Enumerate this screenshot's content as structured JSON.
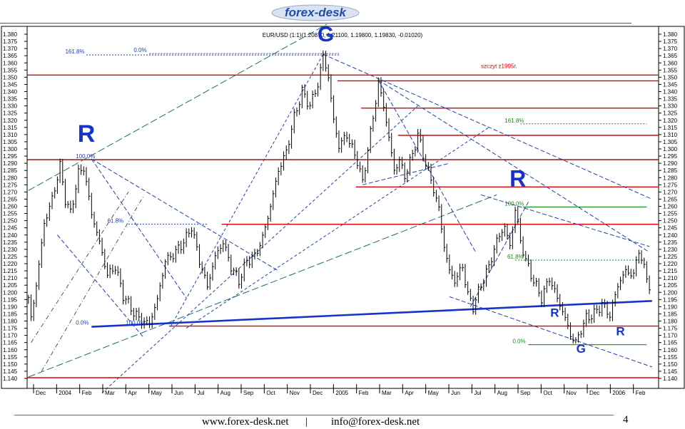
{
  "logo": {
    "text": "forex-desk",
    "color": "#1f4fa6"
  },
  "footer": {
    "site": "www.forex-desk.net",
    "separator": "|",
    "email": "info@forex-desk.net",
    "page_number": "4"
  },
  "chart_data": {
    "type": "line",
    "title": "EUR/USD (1:1)(1.20870, 1.21100, 1.19800, 1.19830, -0.01020)",
    "ylim": [
      1.138,
      1.384
    ],
    "y_ticks": [
      "1.380",
      "1.375",
      "1.370",
      "1.365",
      "1.360",
      "1.355",
      "1.350",
      "1.345",
      "1.340",
      "1.335",
      "1.330",
      "1.325",
      "1.320",
      "1.315",
      "1.310",
      "1.305",
      "1.300",
      "1.295",
      "1.290",
      "1.285",
      "1.280",
      "1.275",
      "1.270",
      "1.265",
      "1.260",
      "1.255",
      "1.250",
      "1.245",
      "1.240",
      "1.235",
      "1.230",
      "1.225",
      "1.220",
      "1.215",
      "1.210",
      "1.205",
      "1.200",
      "1.195",
      "1.190",
      "1.185",
      "1.180",
      "1.175",
      "1.170",
      "1.165",
      "1.160",
      "1.155",
      "1.150",
      "1.145",
      "1.140"
    ],
    "x_months": [
      "Dec",
      "2004",
      "Feb",
      "Mar",
      "Apr",
      "May",
      "Jun",
      "Jul",
      "Aug",
      "Sep",
      "Oct",
      "Nov",
      "Dec",
      "2005",
      "Feb",
      "Mar",
      "Apr",
      "May",
      "Jun",
      "Jul",
      "Aug",
      "Sep",
      "Oct",
      "Nov",
      "Dec",
      "2006",
      "Feb"
    ],
    "price_anchors": [
      [
        0,
        1.195
      ],
      [
        1,
        1.182
      ],
      [
        3,
        1.205
      ],
      [
        6,
        1.248
      ],
      [
        9,
        1.265
      ],
      [
        12,
        1.288
      ],
      [
        14,
        1.265
      ],
      [
        16,
        1.255
      ],
      [
        19,
        1.283
      ],
      [
        21,
        1.287
      ],
      [
        24,
        1.255
      ],
      [
        27,
        1.235
      ],
      [
        30,
        1.212
      ],
      [
        33,
        1.218
      ],
      [
        36,
        1.198
      ],
      [
        40,
        1.186
      ],
      [
        43,
        1.18
      ],
      [
        46,
        1.178
      ],
      [
        49,
        1.195
      ],
      [
        52,
        1.222
      ],
      [
        56,
        1.228
      ],
      [
        60,
        1.238
      ],
      [
        62,
        1.246
      ],
      [
        65,
        1.222
      ],
      [
        68,
        1.204
      ],
      [
        71,
        1.225
      ],
      [
        74,
        1.235
      ],
      [
        77,
        1.218
      ],
      [
        80,
        1.208
      ],
      [
        83,
        1.222
      ],
      [
        86,
        1.225
      ],
      [
        89,
        1.238
      ],
      [
        92,
        1.26
      ],
      [
        95,
        1.285
      ],
      [
        98,
        1.298
      ],
      [
        101,
        1.322
      ],
      [
        104,
        1.34
      ],
      [
        107,
        1.33
      ],
      [
        110,
        1.345
      ],
      [
        112,
        1.365
      ],
      [
        114,
        1.35
      ],
      [
        116,
        1.32
      ],
      [
        118,
        1.302
      ],
      [
        121,
        1.31
      ],
      [
        123,
        1.3
      ],
      [
        125,
        1.292
      ],
      [
        127,
        1.276
      ],
      [
        129,
        1.3
      ],
      [
        131,
        1.322
      ],
      [
        133,
        1.346
      ],
      [
        135,
        1.33
      ],
      [
        137,
        1.308
      ],
      [
        139,
        1.285
      ],
      [
        141,
        1.292
      ],
      [
        143,
        1.281
      ],
      [
        146,
        1.296
      ],
      [
        148,
        1.31
      ],
      [
        150,
        1.296
      ],
      [
        152,
        1.284
      ],
      [
        154,
        1.272
      ],
      [
        156,
        1.258
      ],
      [
        158,
        1.232
      ],
      [
        160,
        1.215
      ],
      [
        162,
        1.208
      ],
      [
        165,
        1.218
      ],
      [
        167,
        1.198
      ],
      [
        169,
        1.19
      ],
      [
        172,
        1.205
      ],
      [
        175,
        1.218
      ],
      [
        178,
        1.236
      ],
      [
        181,
        1.246
      ],
      [
        183,
        1.232
      ],
      [
        185,
        1.258
      ],
      [
        187,
        1.236
      ],
      [
        189,
        1.222
      ],
      [
        192,
        1.208
      ],
      [
        195,
        1.196
      ],
      [
        198,
        1.21
      ],
      [
        201,
        1.196
      ],
      [
        204,
        1.182
      ],
      [
        206,
        1.17
      ],
      [
        208,
        1.165
      ],
      [
        210,
        1.174
      ],
      [
        212,
        1.182
      ],
      [
        215,
        1.185
      ],
      [
        218,
        1.192
      ],
      [
        221,
        1.184
      ],
      [
        224,
        1.205
      ],
      [
        227,
        1.215
      ],
      [
        230,
        1.212
      ],
      [
        232,
        1.23
      ],
      [
        234,
        1.216
      ],
      [
        236,
        1.205
      ]
    ],
    "levels": [
      {
        "price": 1.3515,
        "color": "#dd0000",
        "x0": 0
      },
      {
        "price": 1.3475,
        "color": "#dd0000",
        "x0": 118
      },
      {
        "price": 1.3285,
        "color": "#dd0000",
        "x0": 127
      },
      {
        "price": 1.3095,
        "color": "#dd0000",
        "x0": 141
      },
      {
        "price": 1.2925,
        "color": "#8b0000",
        "x0": 0
      },
      {
        "price": 1.2735,
        "color": "#dd0000",
        "x0": 125
      },
      {
        "price": 1.2475,
        "color": "#dd0000",
        "x0": 74
      },
      {
        "price": 1.1765,
        "color": "#dd0000",
        "x0": 54
      },
      {
        "price": 1.1405,
        "color": "#dd0000",
        "x0": 0
      }
    ],
    "annotations": [
      {
        "text": "161.8%",
        "x": 14,
        "price": 1.3655,
        "color": "#1f3fb0"
      },
      {
        "text": "0.0%",
        "x": 40,
        "price": 1.3665,
        "color": "#1f3fb0"
      },
      {
        "text": "szczyt z1995r.",
        "x": 172,
        "price": 1.3555,
        "color": "#dd0000"
      },
      {
        "text": "161.8%",
        "x": 181,
        "price": 1.3175,
        "color": "#1a8a1a"
      },
      {
        "text": "100.0%",
        "x": 18,
        "price": 1.2925,
        "color": "#1f3fb0"
      },
      {
        "text": "100.0%",
        "x": 181,
        "price": 1.2595,
        "color": "#1a8a1a"
      },
      {
        "text": "61.8%",
        "x": 30,
        "price": 1.2475,
        "color": "#1f3fb0"
      },
      {
        "text": "61.8%",
        "x": 182,
        "price": 1.2225,
        "color": "#1a8a1a"
      },
      {
        "text": "0.0%",
        "x": 18,
        "price": 1.1765,
        "color": "#1f3fb0"
      },
      {
        "text": "100.0%",
        "x": 37,
        "price": 1.1765,
        "color": "#1f3fb0"
      },
      {
        "text": "0.0%",
        "x": 184,
        "price": 1.1635,
        "color": "#1a8a1a"
      }
    ],
    "markers": [
      {
        "text": "R",
        "x": 22,
        "price": 1.305,
        "size": 34
      },
      {
        "text": "G",
        "x": 113,
        "price": 1.375,
        "size": 30
      },
      {
        "text": "R",
        "x": 186,
        "price": 1.274,
        "size": 32
      },
      {
        "text": "R",
        "x": 200,
        "price": 1.183,
        "size": 17
      },
      {
        "text": "G",
        "x": 210,
        "price": 1.158,
        "size": 17
      },
      {
        "text": "R",
        "x": 225,
        "price": 1.17,
        "size": 17
      }
    ],
    "trendlines": [
      {
        "x1": 0,
        "p1": 1.271,
        "x2": 136,
        "p2": 1.41,
        "color": "#1a6f6f",
        "dash": "10,4"
      },
      {
        "x1": 0,
        "p1": 1.141,
        "x2": 178,
        "p2": 1.268,
        "color": "#1a6f6f",
        "dash": "10,4"
      },
      {
        "x1": 24,
        "p1": 1.176,
        "x2": 237,
        "p2": 1.194,
        "color": "#1733c8",
        "dash": "",
        "width": 2.6
      },
      {
        "x1": 24,
        "p1": 1.293,
        "x2": 60,
        "p2": 1.196,
        "color": "#1f3fb0",
        "dash": "6,3"
      },
      {
        "x1": 11,
        "p1": 1.24,
        "x2": 44,
        "p2": 1.168,
        "color": "#1f3fb0",
        "dash": "6,3"
      },
      {
        "x1": 24,
        "p1": 1.293,
        "x2": 95,
        "p2": 1.215,
        "color": "#1f3fb0",
        "dash": "6,3"
      },
      {
        "x1": 54,
        "p1": 1.176,
        "x2": 112,
        "p2": 1.366,
        "color": "#1f3fb0",
        "dash": "4,3"
      },
      {
        "x1": 112,
        "p1": 1.366,
        "x2": 237,
        "p2": 1.265,
        "color": "#1f3fb0",
        "dash": "6,3"
      },
      {
        "x1": 133,
        "p1": 1.348,
        "x2": 236,
        "p2": 1.228,
        "color": "#1f3fb0",
        "dash": "6,3"
      },
      {
        "x1": 133,
        "p1": 1.348,
        "x2": 170,
        "p2": 1.228,
        "color": "#1f3fb0",
        "dash": "6,3"
      },
      {
        "x1": 127,
        "p1": 1.275,
        "x2": 160,
        "p2": 1.29,
        "color": "#1f3fb0",
        "dash": "6,3"
      },
      {
        "x1": 160,
        "p1": 1.197,
        "x2": 237,
        "p2": 1.148,
        "color": "#1f3fb0",
        "dash": "6,3"
      },
      {
        "x1": 168,
        "p1": 1.19,
        "x2": 190,
        "p2": 1.263,
        "color": "#1f3fb0",
        "dash": "6,3"
      },
      {
        "x1": 172,
        "p1": 1.268,
        "x2": 236,
        "p2": 1.232,
        "color": "#1f3fb0",
        "dash": "6,3"
      },
      {
        "x1": 1,
        "p1": 1.165,
        "x2": 38,
        "p2": 1.27,
        "color": "#555555",
        "dash": "6,3,1,3"
      },
      {
        "x1": 5,
        "p1": 1.145,
        "x2": 44,
        "p2": 1.268,
        "color": "#555555",
        "dash": "6,3,1,3"
      },
      {
        "x1": 28,
        "p1": 1.13,
        "x2": 148,
        "p2": 1.33,
        "color": "#1f3fb0",
        "dash": "4,3"
      },
      {
        "x1": 60,
        "p1": 1.175,
        "x2": 175,
        "p2": 1.315,
        "color": "#1f3fb0",
        "dash": "4,3"
      }
    ],
    "fib_dotted": [
      {
        "x1": 22,
        "x2": 118,
        "price": 1.3655,
        "color": "#1f3fb0"
      },
      {
        "x1": 46,
        "x2": 118,
        "price": 1.3665,
        "color": "#1f3fb0"
      },
      {
        "x1": 187,
        "x2": 235,
        "price": 1.3175,
        "color": "#1a8a1a"
      },
      {
        "x1": 38,
        "x2": 68,
        "price": 1.2475,
        "color": "#1f3fb0"
      },
      {
        "x1": 185,
        "x2": 235,
        "price": 1.2225,
        "color": "#1a8a1a"
      }
    ],
    "fib_solid": [
      {
        "x1": 188,
        "x2": 235,
        "price": 1.2595,
        "color": "#1a8a1a"
      },
      {
        "x1": 190,
        "x2": 235,
        "price": 1.1635,
        "color": "#1a8a1a"
      }
    ]
  }
}
